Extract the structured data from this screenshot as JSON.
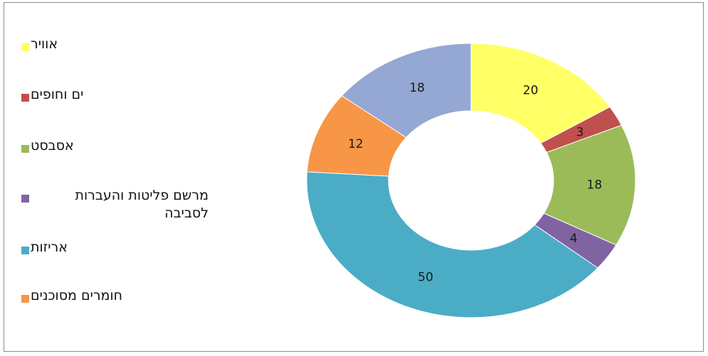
{
  "chart_data": {
    "type": "pie",
    "subtype": "doughnut",
    "title": "",
    "legend_position": "left",
    "categories": [
      "אוויר",
      "ים וחופים",
      "אסבסט",
      "מרשם פליטות והעברות לסביבה",
      "אריזות",
      "חומרים מסוכנים",
      ""
    ],
    "values": [
      20,
      3,
      18,
      4,
      50,
      12,
      18
    ],
    "colors": [
      "#FFFF66",
      "#C0504D",
      "#9BBB59",
      "#8064A2",
      "#4BACC6",
      "#F79646",
      "#95A7D3"
    ],
    "data_labels": [
      "20",
      "3",
      "18",
      "4",
      "50",
      "12",
      "18"
    ]
  }
}
